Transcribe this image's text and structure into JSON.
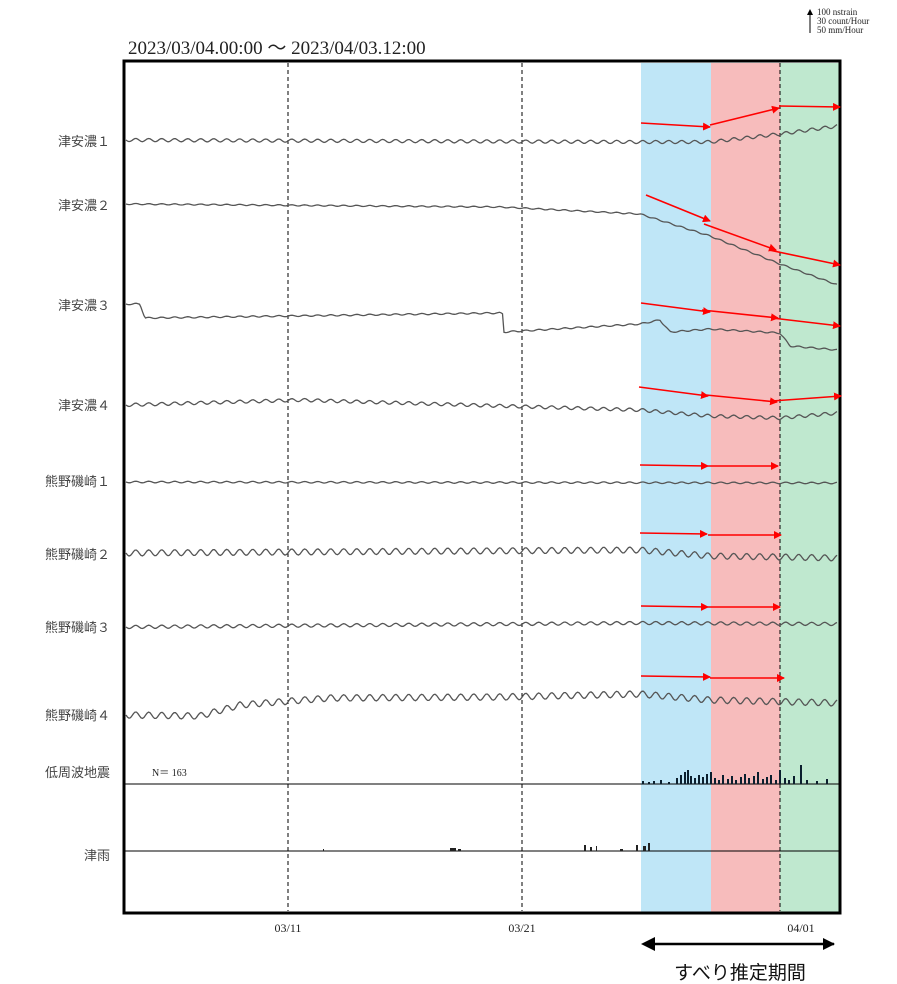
{
  "chart_data": {
    "type": "line",
    "title": "2023/03/04.00:00 ～ 2023/04/03.12:00",
    "scale_labels": [
      "100 nstrain",
      "30 count/Hour",
      "50 mm/Hour"
    ],
    "x_range": [
      "2023/03/04.00:00",
      "2023/04/03.12:00"
    ],
    "x_ticks": [
      "03/11",
      "03/21",
      "04/01"
    ],
    "colors": {
      "period_1": "#bfe6f7",
      "period_2": "#f7bcbc",
      "period_3": "#bfe8cf",
      "trend_arrow": "#ff0000",
      "trace": "#555555"
    },
    "series": [
      {
        "name": "津安濃１"
      },
      {
        "name": "津安濃２"
      },
      {
        "name": "津安濃３"
      },
      {
        "name": "津安濃４"
      },
      {
        "name": "熊野磯崎１"
      },
      {
        "name": "熊野磯崎２"
      },
      {
        "name": "熊野磯崎３"
      },
      {
        "name": "熊野磯崎４"
      },
      {
        "name": "低周波地震"
      },
      {
        "name": "津雨"
      }
    ],
    "lfe_count_label": "N＝ 163",
    "slip_period_label": "すべり推定期間"
  }
}
